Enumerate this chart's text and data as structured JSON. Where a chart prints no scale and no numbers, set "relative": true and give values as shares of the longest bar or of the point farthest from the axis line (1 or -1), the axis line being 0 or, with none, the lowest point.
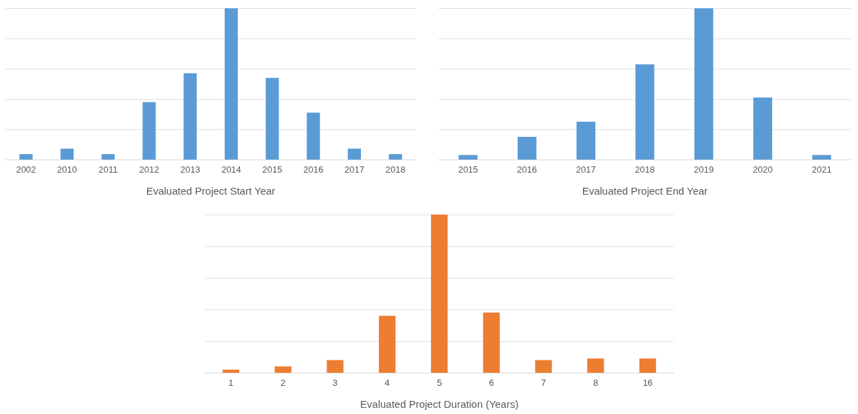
{
  "chart_data": [
    {
      "type": "bar",
      "xlabel": "Evaluated Project Start Year",
      "categories": [
        "2002",
        "2010",
        "2011",
        "2012",
        "2013",
        "2014",
        "2015",
        "2016",
        "2017",
        "2018"
      ],
      "relative": true,
      "grid": true,
      "color": "#5b9bd5",
      "values": [
        0.036,
        0.072,
        0.036,
        0.38,
        0.57,
        1,
        0.54,
        0.31,
        0.072,
        0.036
      ]
    },
    {
      "type": "bar",
      "xlabel": "Evaluated Project End Year",
      "categories": [
        "2015",
        "2016",
        "2017",
        "2018",
        "2019",
        "2020",
        "2021"
      ],
      "relative": true,
      "grid": true,
      "color": "#5b9bd5",
      "values": [
        0.03,
        0.15,
        0.25,
        0.63,
        1,
        0.41,
        0.03
      ]
    },
    {
      "type": "bar",
      "xlabel": "Evaluated Project Duration (Years)",
      "categories": [
        "1",
        "2",
        "3",
        "4",
        "5",
        "6",
        "7",
        "8",
        "16"
      ],
      "relative": true,
      "grid": true,
      "color": "#ed7d31",
      "values": [
        0.02,
        0.04,
        0.08,
        0.36,
        1,
        0.38,
        0.08,
        0.09,
        0.09
      ]
    }
  ]
}
